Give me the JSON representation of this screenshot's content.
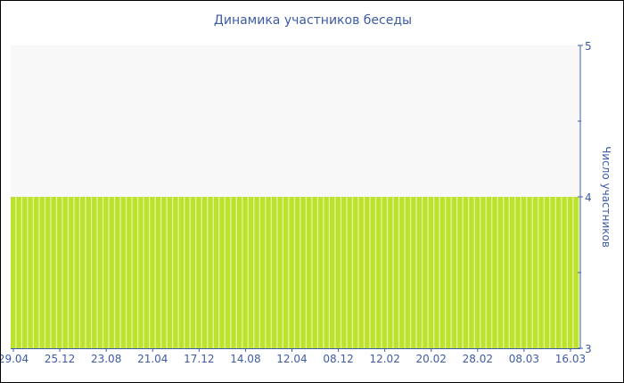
{
  "chart_data": {
    "type": "bar",
    "title": "Динамика участников беседы",
    "ylabel": "Число участников",
    "xlabel": "",
    "ylim": [
      3,
      5
    ],
    "yticks": [
      3,
      4,
      5
    ],
    "y_axis_side": "right",
    "grid": false,
    "x_tick_labels": [
      "29.04",
      "25.12",
      "23.08",
      "21.04",
      "17.12",
      "14.08",
      "12.04",
      "08.12",
      "12.02",
      "20.02",
      "28.02",
      "08.03",
      "16.03"
    ],
    "bar_count": 98,
    "value": 4,
    "colors": {
      "bar": "#bde22e",
      "bar_gap": "#e3f39a",
      "plot_bg": "#f8f8f8",
      "axis": "#3e5ba6",
      "text": "#3e5ba6"
    }
  }
}
